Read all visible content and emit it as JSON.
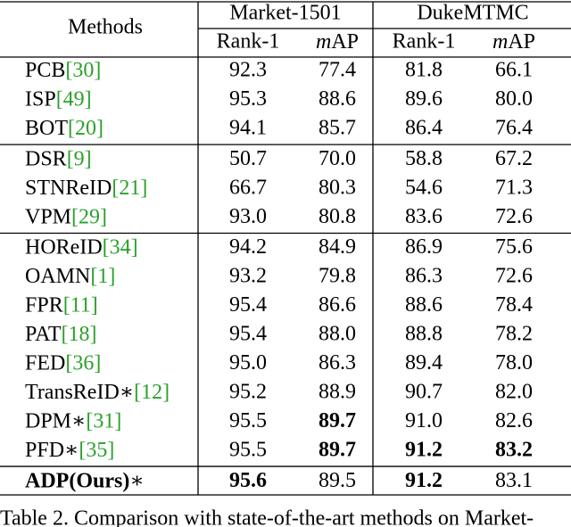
{
  "table": {
    "method_header": "Methods",
    "groups": [
      "Market-1501",
      "DukeMTMC"
    ],
    "subheaders": [
      {
        "italic": "m",
        "text": "AP",
        "plain": "Rank-1"
      }
    ],
    "columns": [
      "Rank-1",
      "mAP",
      "Rank-1",
      "mAP"
    ],
    "rows": [
      {
        "method": "PCB",
        "ref": "[30]",
        "values": [
          "92.3",
          "77.4",
          "81.8",
          "66.1"
        ]
      },
      {
        "method": "ISP",
        "ref": "[49]",
        "values": [
          "95.3",
          "88.6",
          "89.6",
          "80.0"
        ]
      },
      {
        "method": "BOT",
        "ref": "[20]",
        "values": [
          "94.1",
          "85.7",
          "86.4",
          "76.4"
        ]
      },
      {
        "method": "DSR",
        "ref": "[9]",
        "values": [
          "50.7",
          "70.0",
          "58.8",
          "67.2"
        ]
      },
      {
        "method": "STNReID",
        "ref": "[21]",
        "values": [
          "66.7",
          "80.3",
          "54.6",
          "71.3"
        ]
      },
      {
        "method": "VPM",
        "ref": "[29]",
        "values": [
          "93.0",
          "80.8",
          "83.6",
          "72.6"
        ]
      },
      {
        "method": "HOReID",
        "ref": "[34]",
        "values": [
          "94.2",
          "84.9",
          "86.9",
          "75.6"
        ]
      },
      {
        "method": "OAMN",
        "ref": "[1]",
        "values": [
          "93.2",
          "79.8",
          "86.3",
          "72.6"
        ]
      },
      {
        "method": "FPR",
        "ref": "[11]",
        "values": [
          "95.4",
          "86.6",
          "88.6",
          "78.4"
        ]
      },
      {
        "method": "PAT",
        "ref": "[18]",
        "values": [
          "95.4",
          "88.0",
          "88.8",
          "78.2"
        ]
      },
      {
        "method": "FED",
        "ref": "[36]",
        "values": [
          "95.0",
          "86.3",
          "89.4",
          "78.0"
        ]
      },
      {
        "method": "TransReID∗",
        "ref": "[12]",
        "values": [
          "95.2",
          "88.9",
          "90.7",
          "82.0"
        ]
      },
      {
        "method": "DPM∗",
        "ref": "[31]",
        "values": [
          "95.5",
          "89.7",
          "91.0",
          "82.6"
        ],
        "bold": [
          false,
          true,
          false,
          false
        ]
      },
      {
        "method": "PFD∗",
        "ref": "[35]",
        "values": [
          "95.5",
          "89.7",
          "91.2",
          "83.2"
        ],
        "bold": [
          false,
          true,
          true,
          true
        ]
      },
      {
        "method": "ADP(Ours)",
        "suffix": "∗",
        "method_bold": true,
        "values": [
          "95.6",
          "89.5",
          "91.2",
          "83.1"
        ],
        "bold": [
          true,
          false,
          true,
          false
        ]
      }
    ],
    "group_breaks": [
      3,
      6,
      14
    ],
    "caption": "Table 2. Comparison with state-of-the-art methods on Market-"
  }
}
